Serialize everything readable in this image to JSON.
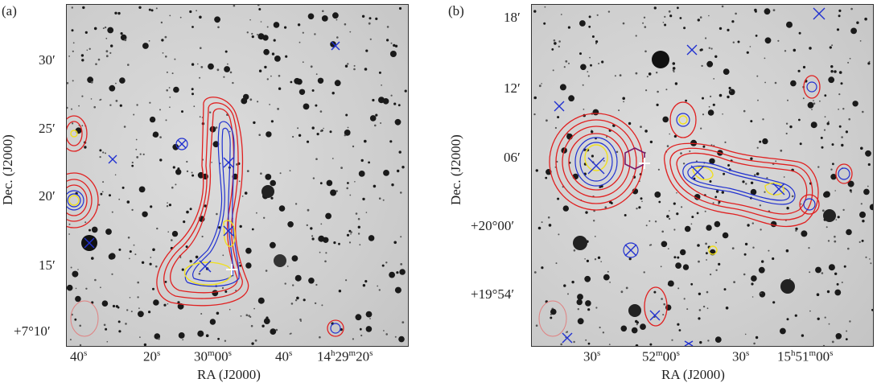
{
  "figure": {
    "panels": [
      {
        "letter": "(a)",
        "xlabel": "RA (J2000)",
        "ylabel": "Dec. (J2000)",
        "xticks": [
          {
            "h": "",
            "m": "",
            "s": "40",
            "su": "s"
          },
          {
            "h": "",
            "m": "",
            "s": "20",
            "su": "s"
          },
          {
            "h": "",
            "m": "30",
            "mu": "m",
            "s": "00",
            "su": "s"
          },
          {
            "h": "",
            "m": "",
            "s": "40",
            "su": "s"
          },
          {
            "h": "14",
            "hu": "h",
            "m": "29",
            "mu": "m",
            "s": "20",
            "su": "s"
          }
        ],
        "yticks": [
          "30′",
          "25′",
          "20′",
          "15′",
          "+7°10′"
        ]
      },
      {
        "letter": "(b)",
        "xlabel": "RA (J2000)",
        "ylabel": "Dec. (J2000)",
        "xticks": [
          {
            "h": "",
            "m": "",
            "s": "30",
            "su": "s"
          },
          {
            "h": "",
            "m": "52",
            "mu": "m",
            "s": "00",
            "su": "s"
          },
          {
            "h": "",
            "m": "",
            "s": "30",
            "su": "s"
          },
          {
            "h": "15",
            "hu": "h",
            "m": "51",
            "mu": "m",
            "s": "00",
            "su": "s"
          }
        ],
        "yticks": [
          "18′",
          "12′",
          "06′",
          "+20°00′",
          "+19°54′"
        ]
      }
    ],
    "colors": {
      "red_contours": "#e02020",
      "blue_contours": "#2030d0",
      "yellow_contours": "#f0e020",
      "purple_marker": "#7a1a6a",
      "white_marker": "#ffffff"
    }
  }
}
